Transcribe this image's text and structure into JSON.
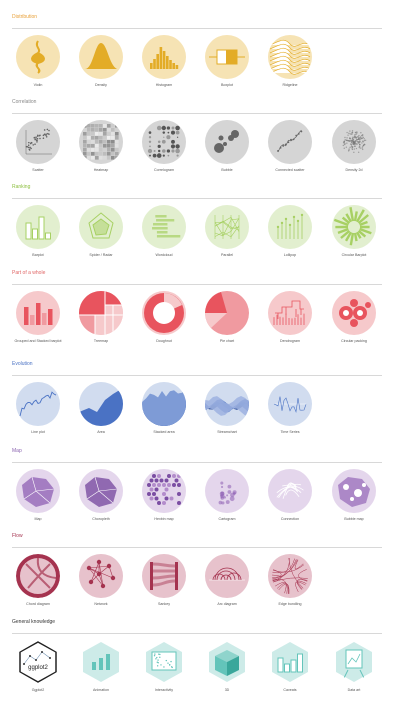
{
  "sections": [
    {
      "title": "Distribution",
      "color": "#e8a13a",
      "bg": "#f6e3b4",
      "fg": "#e3ac27",
      "items": [
        "Violin",
        "Density",
        "Histogram",
        "Boxplot",
        "Ridgeline"
      ]
    },
    {
      "title": "Correlation",
      "color": "#888888",
      "bg": "#d5d5d5",
      "fg": "#555555",
      "items": [
        "Scatter",
        "Heatmap",
        "Correlogram",
        "Bubble",
        "Connected scatter",
        "Density 2d"
      ]
    },
    {
      "title": "Ranking",
      "color": "#8cbf3f",
      "bg": "#e2efcf",
      "fg": "#a7d063",
      "items": [
        "Barplot",
        "Spider / Radar",
        "Wordcloud",
        "Parallel",
        "Lollipop",
        "Circular Barplot"
      ]
    },
    {
      "title": "Part of a whole",
      "color": "#e06666",
      "bg": "#f6c9cb",
      "fg": "#e8545e",
      "items": [
        "Grouped and Stacked barplot",
        "Treemap",
        "Doughnut",
        "Pie chart",
        "Dendrogram",
        "Circular packing"
      ]
    },
    {
      "title": "Evolution",
      "color": "#4a72c4",
      "bg": "#d1dcef",
      "fg": "#4a72c4",
      "items": [
        "Line plot",
        "Area",
        "Stacked area",
        "Streamchart",
        "Time Series"
      ]
    },
    {
      "title": "Map",
      "color": "#8b64b0",
      "bg": "#e4d6ec",
      "fg": "#9467b8",
      "items": [
        "Map",
        "Choropleth",
        "Hexbin map",
        "Cartogram",
        "Connection",
        "Bubble map"
      ]
    },
    {
      "title": "Flow",
      "color": "#a5334f",
      "bg": "#e7c2cc",
      "fg": "#a5334f",
      "items": [
        "Chord diagram",
        "Network",
        "Sankey",
        "Arc diagram",
        "Edge bundling"
      ]
    },
    {
      "title": "General knowledge",
      "color": "#333333",
      "bg": "#cdebe8",
      "fg": "#63c4ba",
      "items": [
        "Ggplot2",
        "Animation",
        "Interactivity",
        "3D",
        "Caveats",
        "Data art"
      ]
    }
  ],
  "ggplot_logo_text": "ggplot2"
}
